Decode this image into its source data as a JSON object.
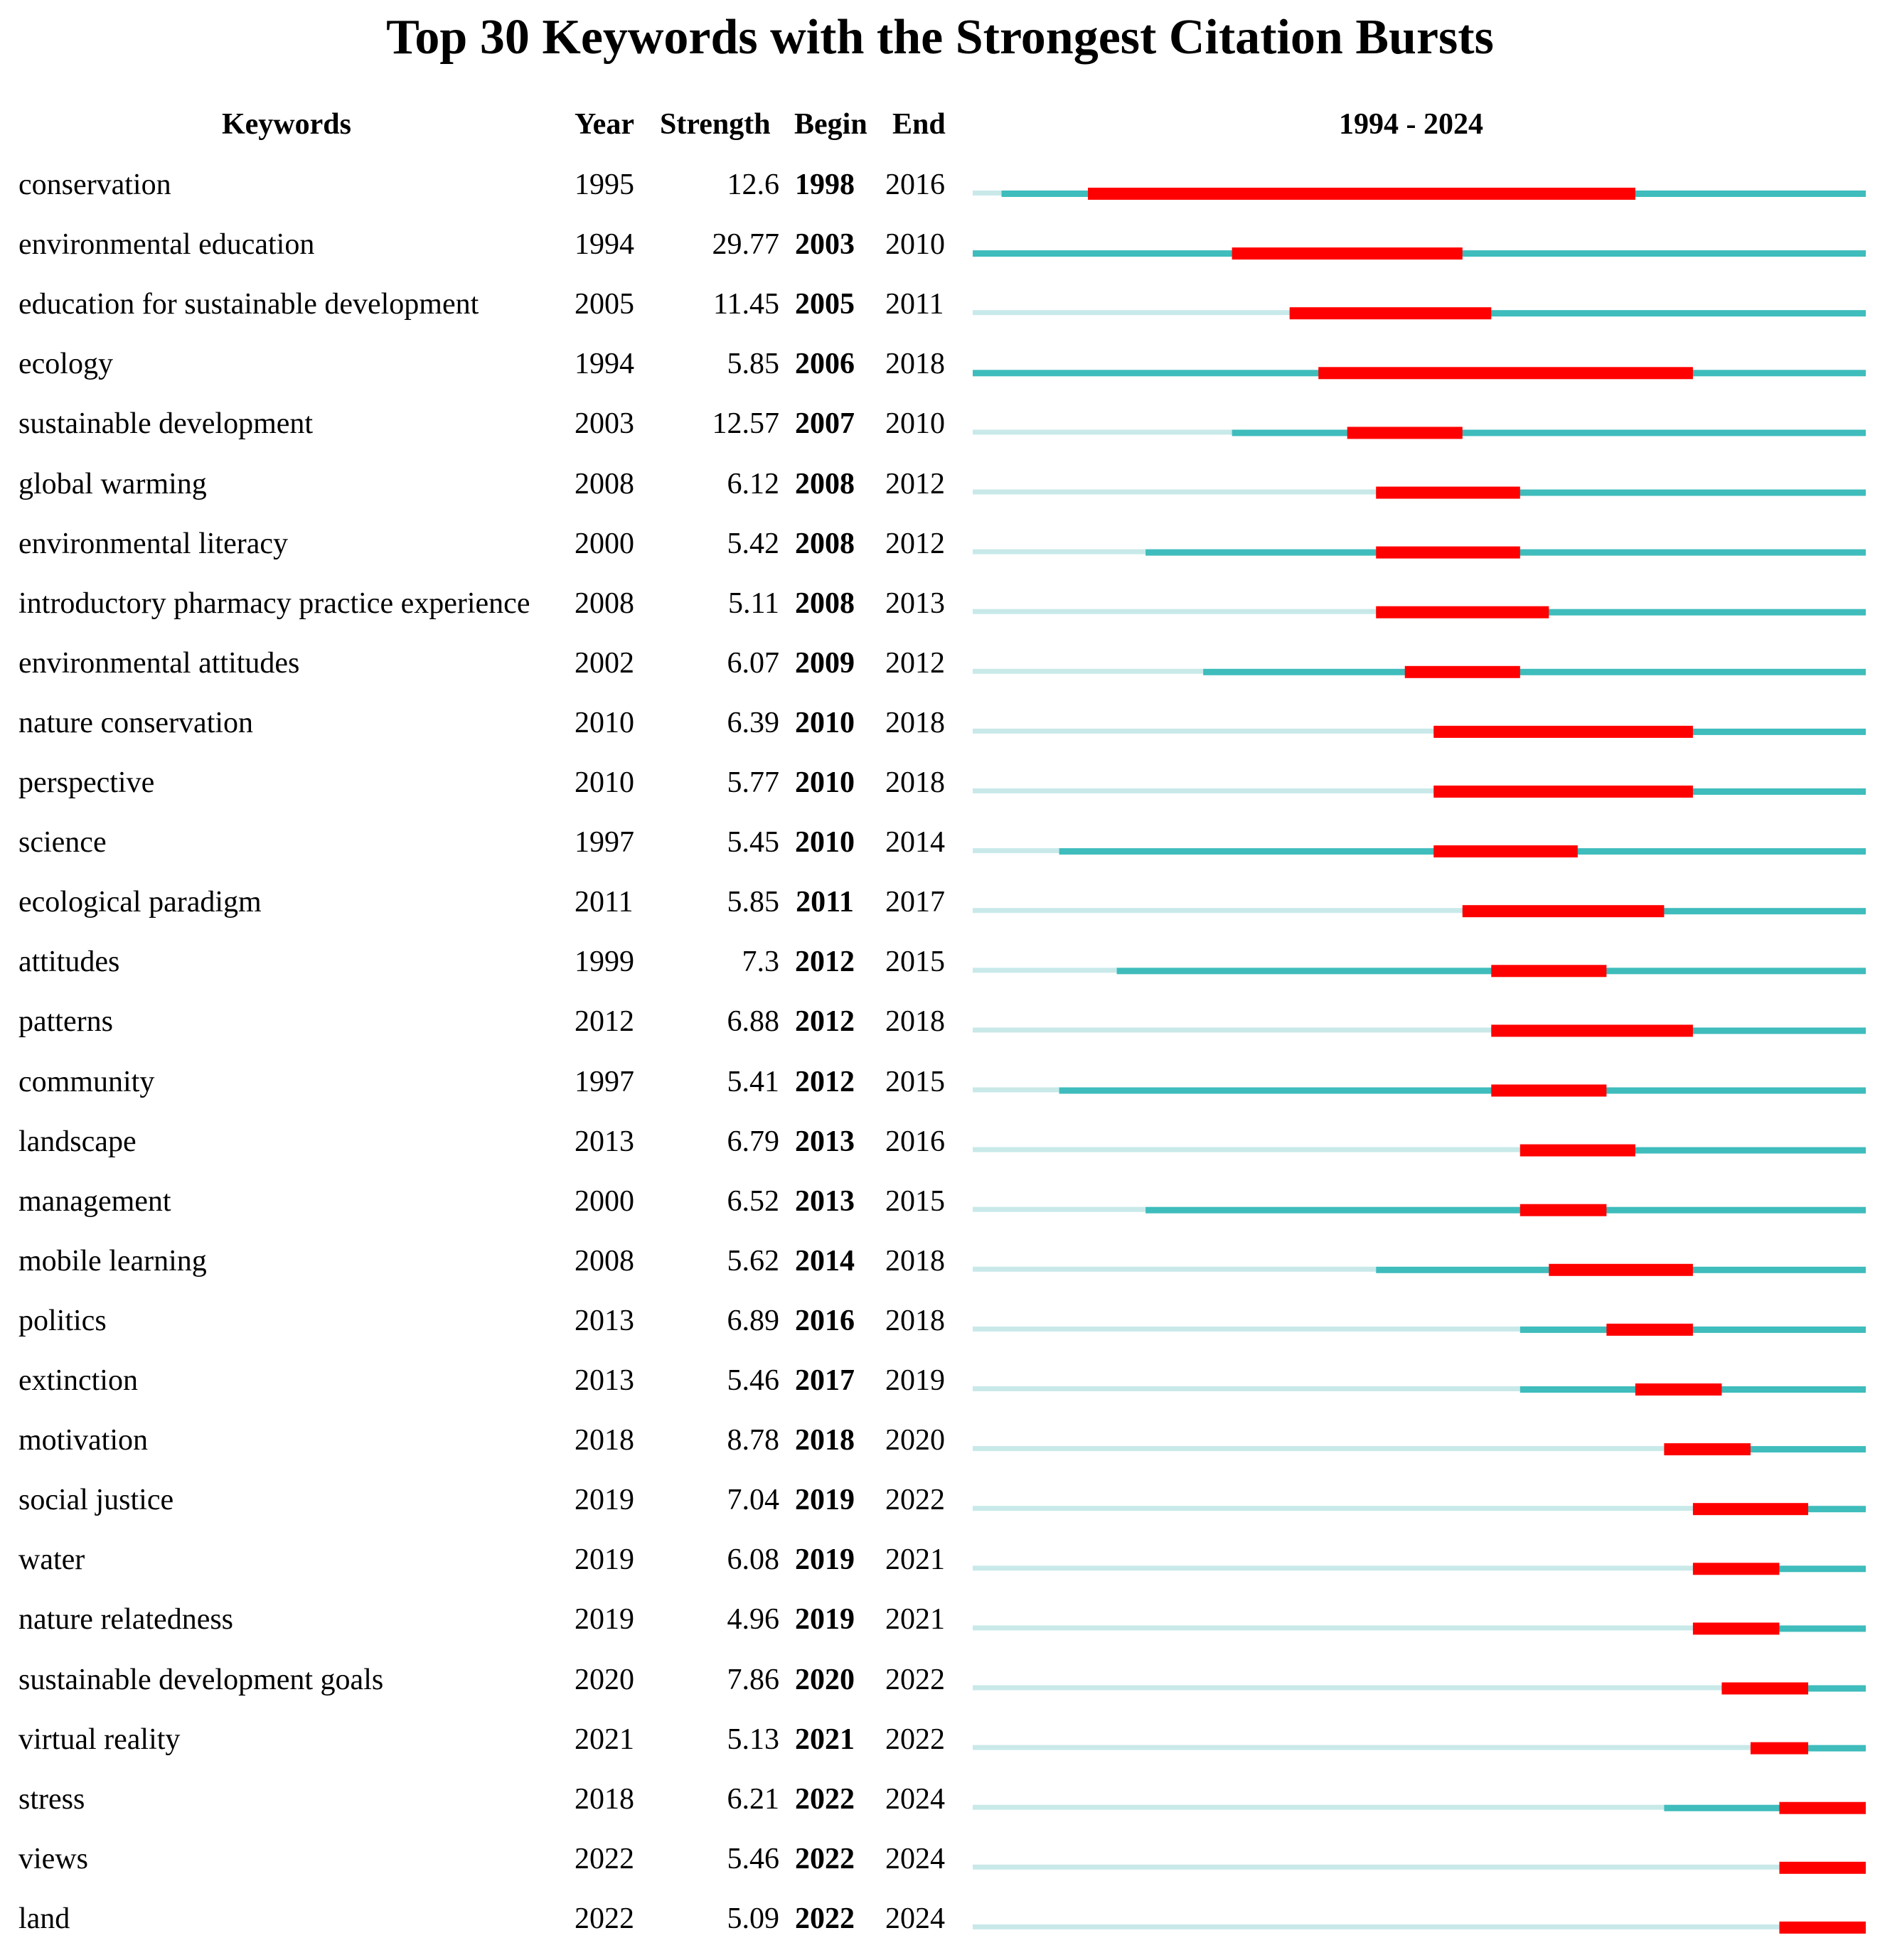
{
  "chart_data": {
    "type": "table",
    "title": "Top 30 Keywords with the Strongest Citation Bursts",
    "columns": [
      "Keywords",
      "Year",
      "Strength",
      "Begin",
      "End"
    ],
    "timeline_label": "1994 - 2024",
    "year_range": [
      1994,
      2024
    ],
    "colors": {
      "burst": "#ff0000",
      "active": "#3fbcbc",
      "inactive": "#c9e9e9"
    },
    "rows": [
      {
        "keyword": "conservation",
        "year": "1995",
        "strength": "12.6",
        "begin": "1998",
        "end": "2016"
      },
      {
        "keyword": "environmental education",
        "year": "1994",
        "strength": "29.77",
        "begin": "2003",
        "end": "2010"
      },
      {
        "keyword": "education for sustainable development",
        "year": "2005",
        "strength": "11.45",
        "begin": "2005",
        "end": "2011"
      },
      {
        "keyword": "ecology",
        "year": "1994",
        "strength": "5.85",
        "begin": "2006",
        "end": "2018"
      },
      {
        "keyword": "sustainable development",
        "year": "2003",
        "strength": "12.57",
        "begin": "2007",
        "end": "2010"
      },
      {
        "keyword": "global warming",
        "year": "2008",
        "strength": "6.12",
        "begin": "2008",
        "end": "2012"
      },
      {
        "keyword": "environmental literacy",
        "year": "2000",
        "strength": "5.42",
        "begin": "2008",
        "end": "2012"
      },
      {
        "keyword": "introductory pharmacy practice experience",
        "year": "2008",
        "strength": "5.11",
        "begin": "2008",
        "end": "2013"
      },
      {
        "keyword": "environmental attitudes",
        "year": "2002",
        "strength": "6.07",
        "begin": "2009",
        "end": "2012"
      },
      {
        "keyword": "nature conservation",
        "year": "2010",
        "strength": "6.39",
        "begin": "2010",
        "end": "2018"
      },
      {
        "keyword": "perspective",
        "year": "2010",
        "strength": "5.77",
        "begin": "2010",
        "end": "2018"
      },
      {
        "keyword": "science",
        "year": "1997",
        "strength": "5.45",
        "begin": "2010",
        "end": "2014"
      },
      {
        "keyword": "ecological paradigm",
        "year": "2011",
        "strength": "5.85",
        "begin": "2011",
        "end": "2017"
      },
      {
        "keyword": "attitudes",
        "year": "1999",
        "strength": "7.3",
        "begin": "2012",
        "end": "2015"
      },
      {
        "keyword": "patterns",
        "year": "2012",
        "strength": "6.88",
        "begin": "2012",
        "end": "2018"
      },
      {
        "keyword": "community",
        "year": "1997",
        "strength": "5.41",
        "begin": "2012",
        "end": "2015"
      },
      {
        "keyword": "landscape",
        "year": "2013",
        "strength": "6.79",
        "begin": "2013",
        "end": "2016"
      },
      {
        "keyword": "management",
        "year": "2000",
        "strength": "6.52",
        "begin": "2013",
        "end": "2015"
      },
      {
        "keyword": "mobile learning",
        "year": "2008",
        "strength": "5.62",
        "begin": "2014",
        "end": "2018"
      },
      {
        "keyword": "politics",
        "year": "2013",
        "strength": "6.89",
        "begin": "2016",
        "end": "2018"
      },
      {
        "keyword": "extinction",
        "year": "2013",
        "strength": "5.46",
        "begin": "2017",
        "end": "2019"
      },
      {
        "keyword": "motivation",
        "year": "2018",
        "strength": "8.78",
        "begin": "2018",
        "end": "2020"
      },
      {
        "keyword": "social justice",
        "year": "2019",
        "strength": "7.04",
        "begin": "2019",
        "end": "2022"
      },
      {
        "keyword": "water",
        "year": "2019",
        "strength": "6.08",
        "begin": "2019",
        "end": "2021"
      },
      {
        "keyword": "nature relatedness",
        "year": "2019",
        "strength": "4.96",
        "begin": "2019",
        "end": "2021"
      },
      {
        "keyword": "sustainable development goals",
        "year": "2020",
        "strength": "7.86",
        "begin": "2020",
        "end": "2022"
      },
      {
        "keyword": "virtual reality",
        "year": "2021",
        "strength": "5.13",
        "begin": "2021",
        "end": "2022"
      },
      {
        "keyword": "stress",
        "year": "2018",
        "strength": "6.21",
        "begin": "2022",
        "end": "2024"
      },
      {
        "keyword": "views",
        "year": "2022",
        "strength": "5.46",
        "begin": "2022",
        "end": "2024"
      },
      {
        "keyword": "land",
        "year": "2022",
        "strength": "5.09",
        "begin": "2022",
        "end": "2024"
      }
    ]
  }
}
